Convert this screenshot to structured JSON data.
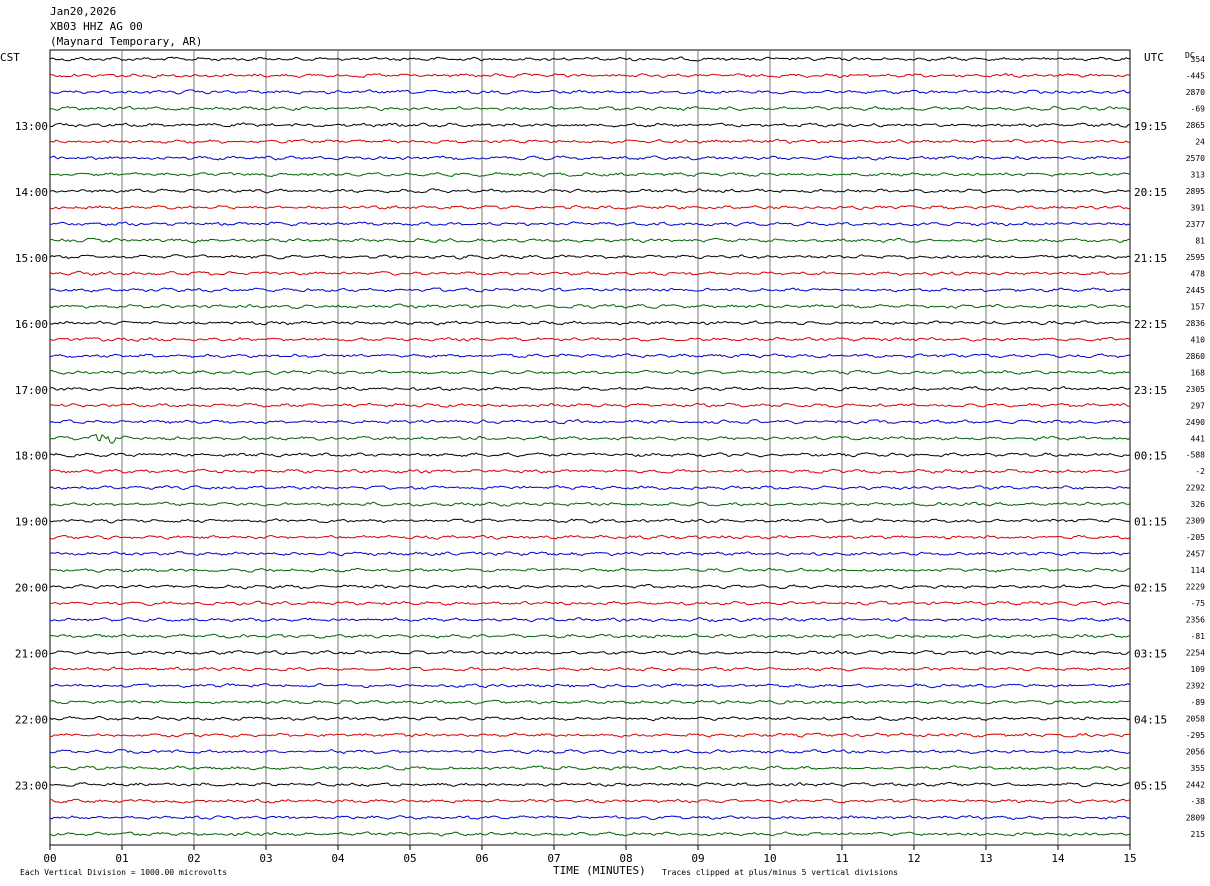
{
  "header": {
    "date": "Jan20,2026",
    "station": "XB03 HHZ AG 00",
    "location": "(Maynard Temporary, AR)"
  },
  "chart_data": {
    "type": "line",
    "title": "",
    "xlabel": "TIME (MINUTES)",
    "x_ticks": [
      "00",
      "01",
      "02",
      "03",
      "04",
      "05",
      "06",
      "07",
      "08",
      "09",
      "10",
      "11",
      "12",
      "13",
      "14",
      "15"
    ],
    "xlim": [
      0,
      15
    ],
    "left_axis_label": "CST",
    "right_axis_label": "UTC",
    "dc_label": "DC",
    "left_time_labels": [
      "13:00",
      "14:00",
      "15:00",
      "16:00",
      "17:00",
      "18:00",
      "19:00",
      "20:00",
      "21:00",
      "22:00",
      "23:00"
    ],
    "right_time_labels": [
      "19:15",
      "20:15",
      "21:15",
      "22:15",
      "23:15",
      "00:15",
      "01:15",
      "02:15",
      "03:15",
      "04:15",
      "05:15"
    ],
    "trace_colors": [
      "#000000",
      "#d40000",
      "#0000cc",
      "#006400"
    ],
    "trace_count": 48,
    "dc_offsets": [
      "354",
      "-445",
      "2870",
      "-69",
      "2865",
      "24",
      "2570",
      "313",
      "2895",
      "391",
      "2377",
      "81",
      "2595",
      "478",
      "2445",
      "157",
      "2836",
      "410",
      "2860",
      "168",
      "2305",
      "297",
      "2490",
      "441",
      "-588",
      "-2",
      "2292",
      "326",
      "2309",
      "-205",
      "2457",
      "114",
      "2229",
      "-75",
      "2356",
      "-81",
      "2254",
      "109",
      "2392",
      "-89",
      "2058",
      "-295",
      "2056",
      "355",
      "2442",
      "-38",
      "2809",
      "215"
    ],
    "notable_events": [
      {
        "trace": 23,
        "minute": 0.8,
        "amplitude": "high"
      }
    ],
    "footer_left": "Each Vertical Division = 1000.00 microvolts",
    "footer_right": "Traces clipped at plus/minus 5 vertical divisions",
    "grid_vertical": true
  }
}
